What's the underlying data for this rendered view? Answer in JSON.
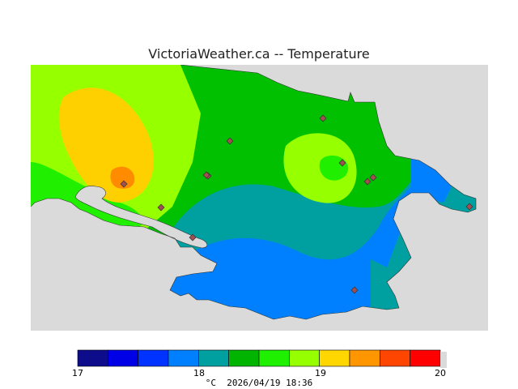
{
  "title": "VictoriaWeather.ca -- Temperature",
  "footer": {
    "unit": "°C",
    "timestamp": "2026/04/19 18:36"
  },
  "legend": {
    "tick_labels": [
      "17",
      "18",
      "19",
      "20"
    ],
    "colors": [
      "#0d0d8c",
      "#0000e6",
      "#0033ff",
      "#0080ff",
      "#00a0a0",
      "#00b400",
      "#1ef000",
      "#96ff00",
      "#ffd700",
      "#ff9600",
      "#ff4600",
      "#ff0000"
    ]
  },
  "map": {
    "land_colors": {
      "zone_green": "#00c000",
      "zone_teal": "#00a0a0",
      "zone_blue": "#0080ff",
      "zone_lime": "#96ff00",
      "zone_lightgreen": "#20f000",
      "zone_yellow": "#ffd000",
      "zone_orange": "#ff8c00"
    },
    "water_color": "#dadada",
    "station_color": "#a05050",
    "station_count": 12
  }
}
